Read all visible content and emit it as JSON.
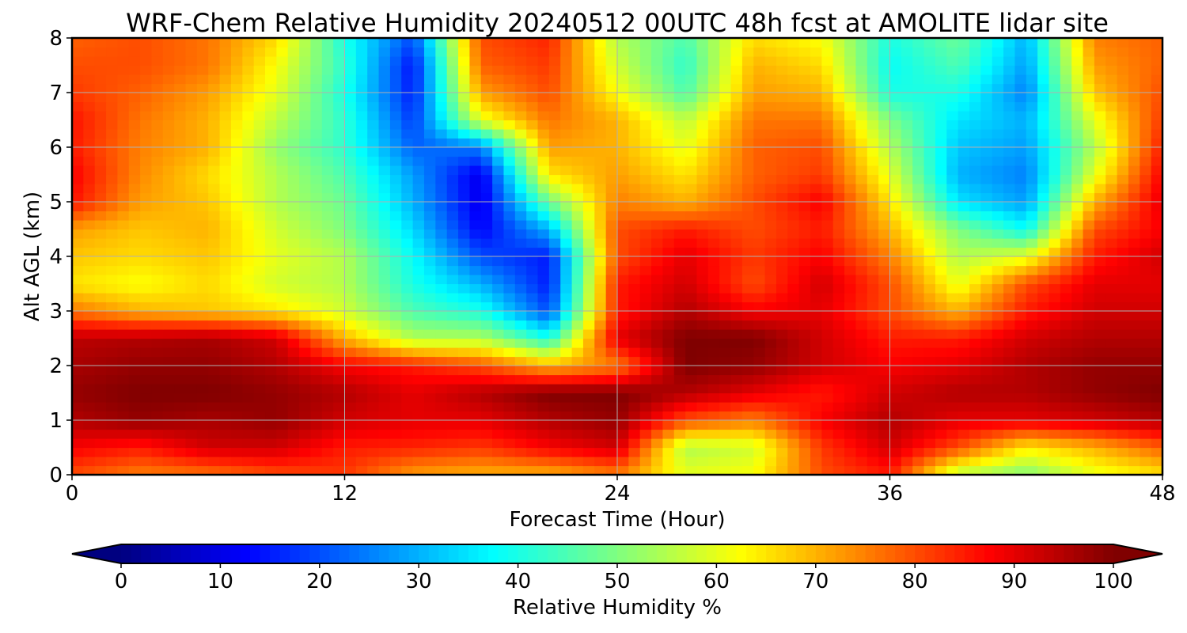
{
  "chart_data": {
    "type": "heatmap",
    "title": "WRF-Chem Relative Humidity 20240512 00UTC 48h fcst at AMOLITE lidar site",
    "xlabel": "Forecast Time (Hour)",
    "ylabel": "Alt AGL (km)",
    "xlim": [
      0,
      48
    ],
    "ylim": [
      0,
      8
    ],
    "xticks": [
      0,
      12,
      24,
      36,
      48
    ],
    "yticks": [
      0,
      1,
      2,
      3,
      4,
      5,
      6,
      7,
      8
    ],
    "grid": true,
    "colorbar": {
      "label": "Relative Humidity %",
      "min": 0,
      "max": 100,
      "ticks": [
        0,
        10,
        20,
        30,
        40,
        50,
        60,
        70,
        80,
        90,
        100
      ],
      "colormap": "jet",
      "extend": "both",
      "orientation": "horizontal"
    },
    "x": [
      0,
      3,
      6,
      9,
      12,
      15,
      18,
      21,
      24,
      27,
      30,
      33,
      36,
      39,
      42,
      45,
      48
    ],
    "y": [
      0,
      0.5,
      1,
      1.5,
      2,
      2.5,
      3,
      3.5,
      4,
      4.5,
      5,
      5.5,
      6,
      6.5,
      7,
      7.5,
      8
    ],
    "z": [
      [
        80,
        75,
        76,
        80,
        82,
        72,
        70,
        70,
        75,
        60,
        62,
        80,
        85,
        55,
        50,
        60,
        65
      ],
      [
        88,
        85,
        92,
        92,
        85,
        84,
        82,
        88,
        92,
        55,
        58,
        82,
        92,
        80,
        64,
        70,
        78
      ],
      [
        95,
        98,
        96,
        98,
        92,
        90,
        90,
        95,
        98,
        80,
        75,
        88,
        95,
        90,
        90,
        92,
        95
      ],
      [
        98,
        100,
        100,
        98,
        95,
        90,
        95,
        100,
        100,
        95,
        90,
        85,
        92,
        95,
        95,
        98,
        100
      ],
      [
        96,
        98,
        98,
        95,
        88,
        85,
        80,
        70,
        75,
        100,
        98,
        92,
        88,
        90,
        95,
        98,
        98
      ],
      [
        94,
        95,
        96,
        92,
        70,
        55,
        55,
        40,
        90,
        100,
        100,
        92,
        85,
        85,
        92,
        95,
        95
      ],
      [
        76,
        70,
        68,
        65,
        58,
        45,
        40,
        20,
        85,
        95,
        88,
        90,
        80,
        70,
        85,
        92,
        92
      ],
      [
        65,
        62,
        66,
        58,
        55,
        40,
        30,
        15,
        85,
        92,
        80,
        92,
        80,
        60,
        80,
        90,
        90
      ],
      [
        68,
        66,
        68,
        60,
        55,
        38,
        20,
        15,
        80,
        90,
        82,
        88,
        75,
        55,
        60,
        85,
        92
      ],
      [
        72,
        68,
        70,
        58,
        50,
        34,
        12,
        30,
        80,
        85,
        80,
        85,
        70,
        50,
        38,
        80,
        88
      ],
      [
        86,
        72,
        68,
        55,
        48,
        30,
        10,
        48,
        75,
        70,
        80,
        88,
        65,
        35,
        28,
        70,
        90
      ],
      [
        88,
        74,
        66,
        55,
        45,
        28,
        10,
        65,
        72,
        65,
        78,
        82,
        60,
        30,
        25,
        60,
        88
      ],
      [
        85,
        75,
        70,
        52,
        42,
        22,
        25,
        72,
        70,
        60,
        78,
        80,
        55,
        32,
        28,
        55,
        85
      ],
      [
        86,
        76,
        70,
        56,
        42,
        18,
        60,
        76,
        70,
        56,
        76,
        76,
        50,
        35,
        30,
        60,
        82
      ],
      [
        82,
        78,
        72,
        60,
        40,
        15,
        72,
        80,
        62,
        45,
        72,
        70,
        40,
        40,
        25,
        68,
        80
      ],
      [
        80,
        80,
        76,
        62,
        42,
        14,
        78,
        82,
        58,
        42,
        70,
        66,
        38,
        45,
        28,
        72,
        78
      ],
      [
        78,
        80,
        76,
        66,
        40,
        20,
        80,
        84,
        55,
        45,
        66,
        62,
        40,
        48,
        30,
        75,
        78
      ]
    ]
  }
}
